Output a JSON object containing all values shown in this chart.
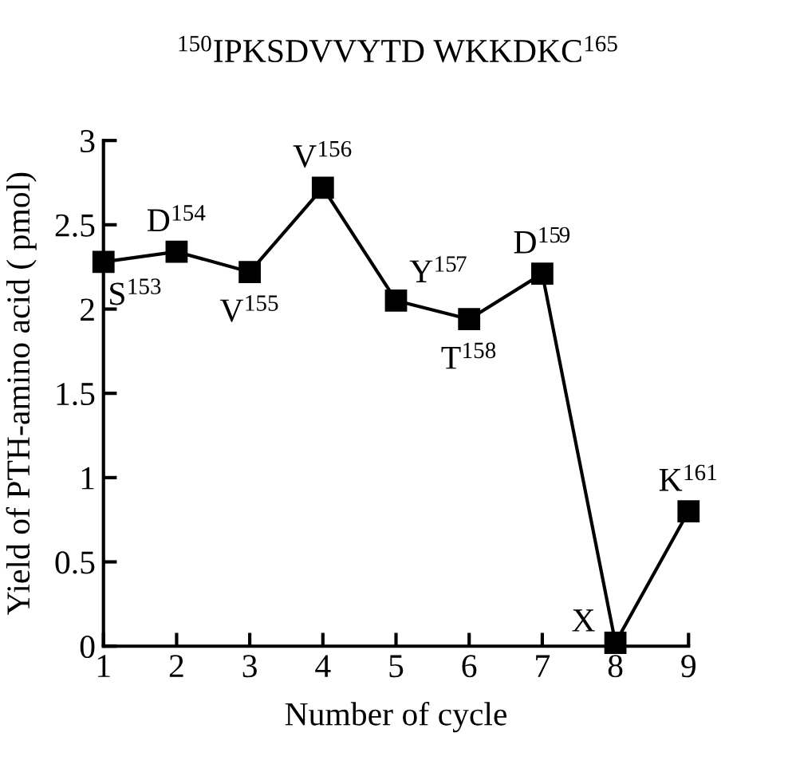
{
  "chart_data": {
    "type": "line",
    "title": "$^{150}$IPKSDVVYTD WKKDKC$^{165}$",
    "xlabel": "Number of cycle",
    "ylabel": "Yield of PTH-amino acid ( pmol)",
    "x": [
      1,
      2,
      3,
      4,
      5,
      6,
      7,
      8,
      9
    ],
    "series": [
      {
        "color": "#000000",
        "values": [
          2.28,
          2.34,
          2.22,
          2.72,
          2.05,
          1.94,
          2.21,
          0.02,
          0.8
        ]
      }
    ],
    "xlim": [
      1,
      9
    ],
    "xticks": [
      1,
      2,
      3,
      4,
      5,
      6,
      7,
      8,
      9
    ],
    "ylim": [
      0,
      3
    ],
    "yticks": [
      0,
      0.5,
      1,
      1.5,
      2,
      2.5,
      3
    ],
    "marker": "square",
    "line_style": "solid",
    "grid": false,
    "legend": false,
    "annotations": [
      {
        "text": "S$^{153}$",
        "x": 1,
        "y": 2.28
      },
      {
        "text": "D$^{154}$",
        "x": 2,
        "y": 2.34
      },
      {
        "text": "V$^{155}$",
        "x": 3,
        "y": 2.22
      },
      {
        "text": "V$^{156}$",
        "x": 4,
        "y": 2.72
      },
      {
        "text": "Y$^{157}$",
        "x": 5,
        "y": 2.05
      },
      {
        "text": "T$^{158}$",
        "x": 6,
        "y": 1.94
      },
      {
        "text": "D$^{159}$",
        "x": 7,
        "y": 2.21
      },
      {
        "text": "X",
        "x": 8,
        "y": 0.02
      },
      {
        "text": "K$^{161}$",
        "x": 9,
        "y": 0.8
      }
    ]
  }
}
